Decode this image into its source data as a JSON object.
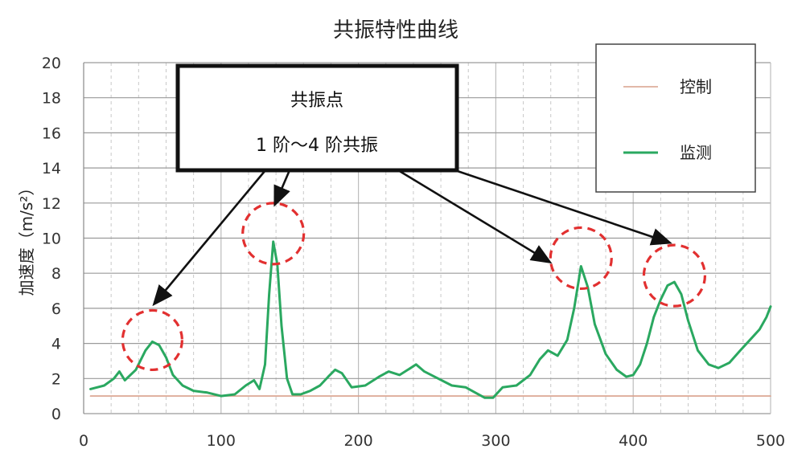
{
  "chart_data": {
    "type": "line",
    "title": "共振特性曲线",
    "ylabel": "加速度（m/s²）",
    "xlabel": "",
    "xlim": [
      0,
      500
    ],
    "ylim": [
      0,
      20
    ],
    "xticks": [
      0,
      100,
      200,
      300,
      400,
      500
    ],
    "yticks": [
      0,
      2,
      4,
      6,
      8,
      10,
      12,
      14,
      16,
      18,
      20
    ],
    "grid": true,
    "legend_position": "top-right",
    "series": [
      {
        "name": "控制",
        "color": "#d9a08c",
        "x": [
          5,
          500
        ],
        "y": [
          1.0,
          1.0
        ]
      },
      {
        "name": "监测",
        "color": "#2aa860",
        "x": [
          5,
          15,
          22,
          26,
          30,
          38,
          45,
          50,
          55,
          60,
          65,
          72,
          80,
          90,
          100,
          110,
          118,
          124,
          128,
          132,
          135,
          138,
          141,
          144,
          148,
          152,
          158,
          165,
          172,
          178,
          183,
          188,
          195,
          205,
          215,
          222,
          230,
          238,
          242,
          248,
          258,
          268,
          278,
          285,
          292,
          298,
          305,
          315,
          325,
          332,
          338,
          345,
          352,
          357,
          362,
          367,
          372,
          380,
          388,
          395,
          400,
          405,
          410,
          415,
          420,
          425,
          430,
          435,
          440,
          447,
          455,
          462,
          470,
          478,
          485,
          492,
          497,
          500
        ],
        "y": [
          1.4,
          1.6,
          2.0,
          2.4,
          1.9,
          2.5,
          3.6,
          4.1,
          3.9,
          3.2,
          2.2,
          1.6,
          1.3,
          1.2,
          1.0,
          1.1,
          1.6,
          1.9,
          1.4,
          2.8,
          6.8,
          9.8,
          8.5,
          5.0,
          2.0,
          1.1,
          1.1,
          1.3,
          1.6,
          2.1,
          2.5,
          2.3,
          1.5,
          1.6,
          2.1,
          2.4,
          2.2,
          2.6,
          2.8,
          2.4,
          2.0,
          1.6,
          1.5,
          1.2,
          0.9,
          0.9,
          1.5,
          1.6,
          2.2,
          3.1,
          3.6,
          3.3,
          4.2,
          6.0,
          8.4,
          7.2,
          5.1,
          3.4,
          2.5,
          2.1,
          2.2,
          2.8,
          4.0,
          5.5,
          6.5,
          7.3,
          7.5,
          6.8,
          5.3,
          3.6,
          2.8,
          2.6,
          2.9,
          3.6,
          4.2,
          4.8,
          5.5,
          6.1
        ]
      }
    ],
    "annotations": {
      "box_lines": [
        "共振点",
        "1 阶～4 阶共振"
      ],
      "resonance_points": [
        {
          "x": 50,
          "y": 4.1
        },
        {
          "x": 138,
          "y": 9.8
        },
        {
          "x": 362,
          "y": 8.4
        },
        {
          "x": 430,
          "y": 7.5
        }
      ]
    }
  }
}
